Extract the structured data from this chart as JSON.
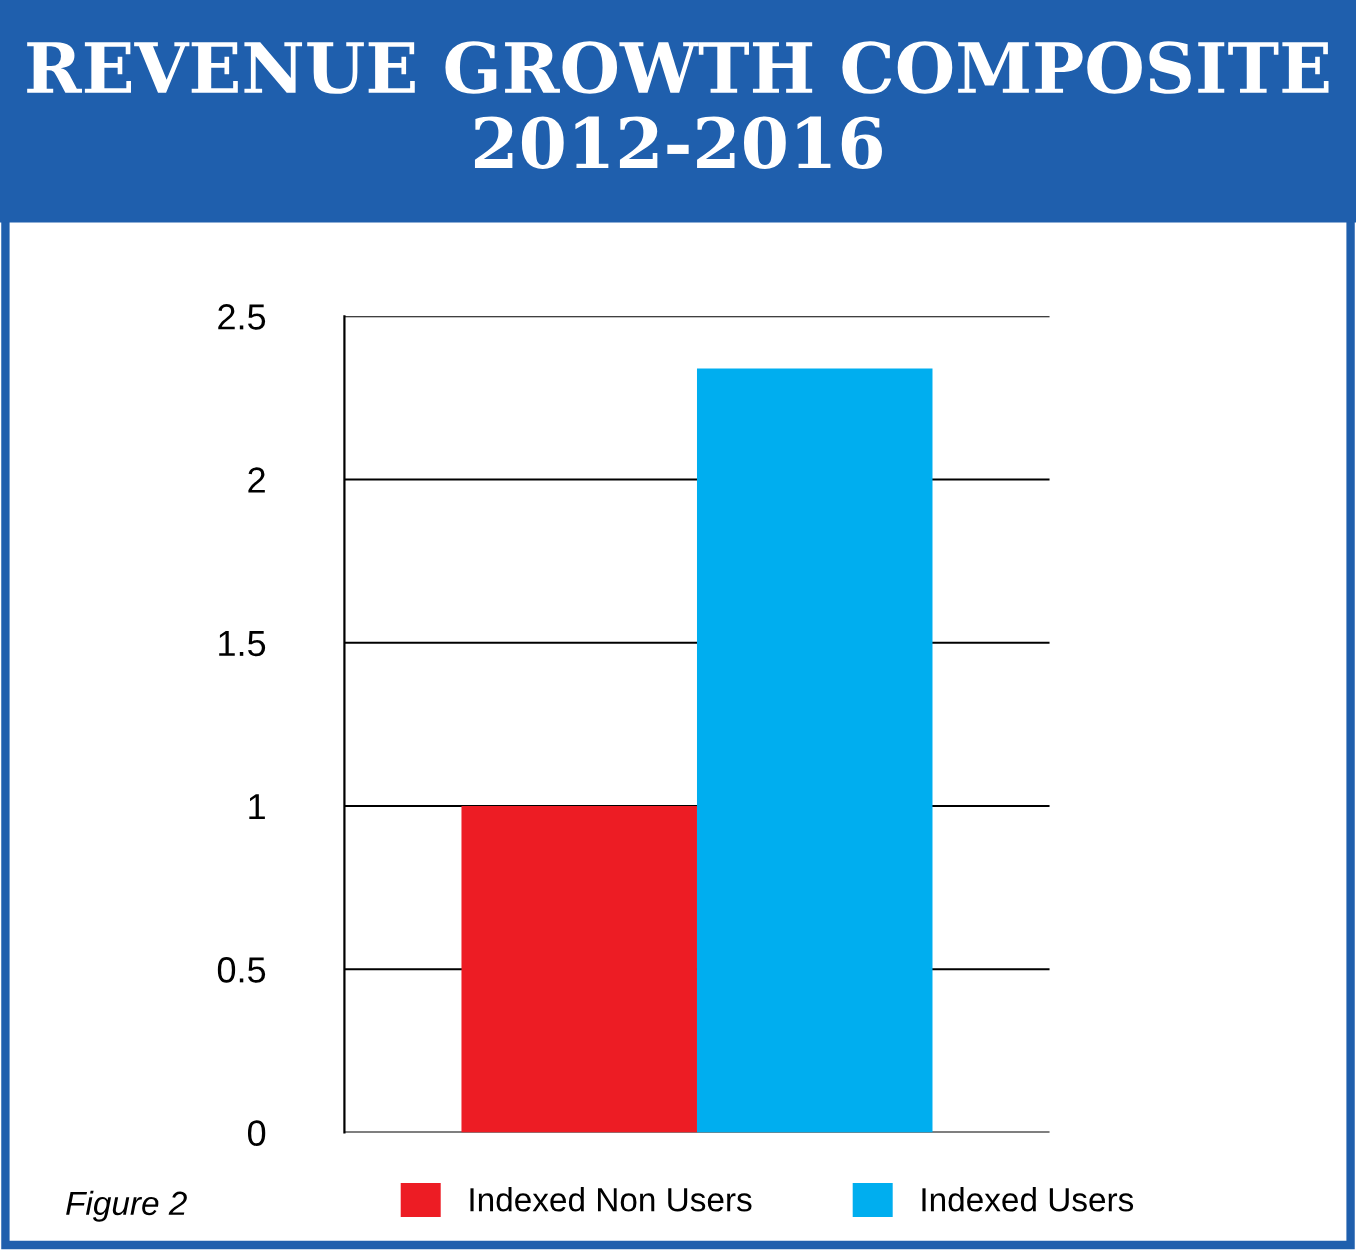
{
  "chart_data": {
    "type": "bar",
    "title": "REVENUE GROWTH COMPOSITE\n2012-2016",
    "categories": [
      null
    ],
    "series": [
      {
        "name": "Indexed Non Users",
        "color": "#ed1c24",
        "values": [
          1
        ]
      },
      {
        "name": "Indexed Users",
        "color": "#00aeef",
        "values": [
          2.34
        ]
      }
    ],
    "ylim": [
      0,
      2.5
    ],
    "yticks": [
      0,
      0.5,
      1,
      1.5,
      2,
      2.5
    ],
    "grid": "y",
    "legend": "bottom",
    "annotations": [
      "Figure 2"
    ]
  }
}
